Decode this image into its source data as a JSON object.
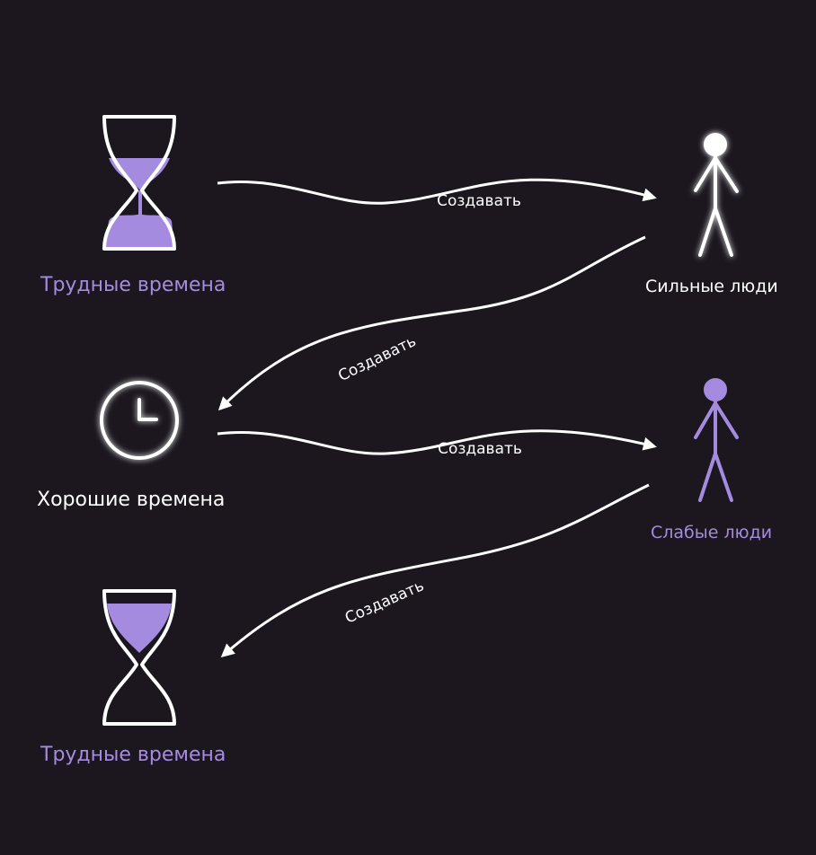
{
  "nodes": {
    "hard_times_top": "Трудные времена",
    "strong_people": "Сильные люди",
    "good_times": "Хорошие времена",
    "weak_people": "Слабые люди",
    "hard_times_bottom": "Трудные времена"
  },
  "arrows": [
    {
      "label": "Создавать"
    },
    {
      "label": "Создавать"
    },
    {
      "label": "Создавать"
    },
    {
      "label": "Создавать"
    }
  ],
  "colors": {
    "background": "#1c171f",
    "accent_purple": "#a58be0",
    "line_white": "#ffffff"
  },
  "icons": [
    "hourglass-icon",
    "stick-figure-icon",
    "clock-icon",
    "stick-figure-icon",
    "hourglass-icon"
  ]
}
